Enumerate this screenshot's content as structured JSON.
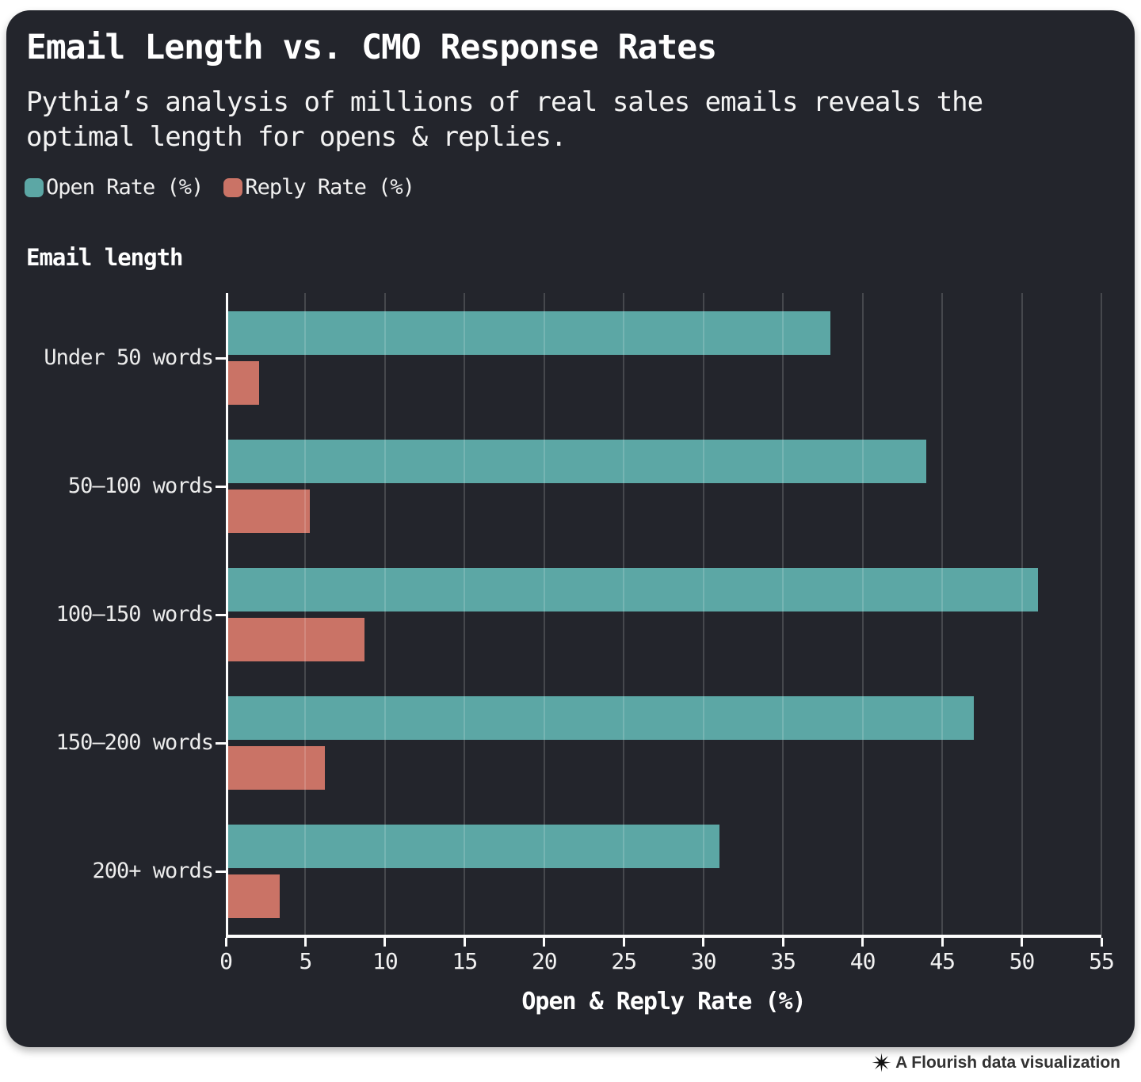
{
  "header": {
    "title": "Email Length vs. CMO Response Rates",
    "subtitle": "Pythia’s analysis of millions of real sales emails reveals the optimal length for opens & replies."
  },
  "chart_data": {
    "type": "bar",
    "orientation": "horizontal",
    "title": "Email Length vs. CMO Response Rates",
    "subtitle": "Pythia’s analysis of millions of real sales emails reveals the optimal length for opens & replies.",
    "ylabel": "Email length",
    "xlabel": "Open & Reply Rate (%)",
    "categories": [
      "Under 50 words",
      "50–100 words",
      "100–150 words",
      "150–200 words",
      "200+ words"
    ],
    "series": [
      {
        "name": "Open Rate (%)",
        "color": "#5CA7A5",
        "values": [
          38,
          44,
          51,
          47,
          31
        ]
      },
      {
        "name": "Reply Rate (%)",
        "color": "#CA7366",
        "values": [
          2.1,
          5.3,
          8.7,
          6.2,
          3.4
        ]
      }
    ],
    "xlim": [
      0,
      55
    ],
    "xticks": [
      0,
      5,
      10,
      15,
      20,
      25,
      30,
      35,
      40,
      45,
      50,
      55
    ],
    "grid": "vertical",
    "legend_position": "top-left",
    "background_color": "#23252C"
  },
  "footer": {
    "attribution": "A Flourish data visualization"
  }
}
